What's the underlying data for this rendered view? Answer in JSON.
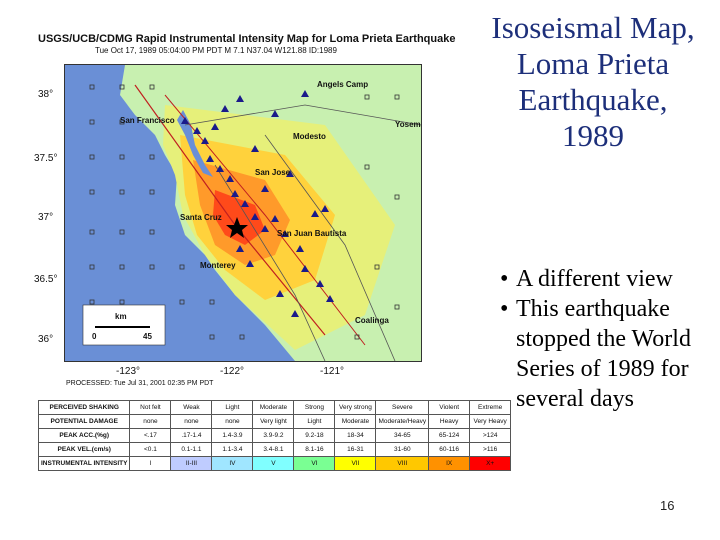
{
  "slide": {
    "title_lines": [
      "Isoseismal Map,",
      "Loma Prieta",
      "Earthquake,",
      "1989"
    ],
    "bullets": [
      "A different view",
      "This earthquake stopped the World Series of 1989 for several days"
    ],
    "page_number": "16"
  },
  "map": {
    "title": "USGS/UCB/CDMG Rapid Instrumental Intensity Map for Loma Prieta Earthquake",
    "subtitle": "Tue Oct 17, 1989 05:04:00 PM PDT  M 7.1  N37.04 W121.88  ID:1989",
    "lat_labels": [
      "38°",
      "37.5°",
      "37°",
      "36.5°",
      "36°"
    ],
    "lon_labels": [
      "-123°",
      "-122°",
      "-121°"
    ],
    "cities": [
      "Angels Camp",
      "San Francisco",
      "Yosemite",
      "Modesto",
      "San Jose",
      "Santa Cruz",
      "San Juan Bautista",
      "Monterey",
      "Coalinga"
    ],
    "scale_label": "km",
    "scale_ticks": [
      "0",
      "45"
    ],
    "processed": "PROCESSED: Tue Jul 31, 2001 02:35 PM PDT",
    "legend": {
      "rows": [
        {
          "header": "PERCEIVED SHAKING",
          "cells": [
            "Not felt",
            "Weak",
            "Light",
            "Moderate",
            "Strong",
            "Very strong",
            "Severe",
            "Violent",
            "Extreme"
          ]
        },
        {
          "header": "POTENTIAL DAMAGE",
          "cells": [
            "none",
            "none",
            "none",
            "Very light",
            "Light",
            "Moderate",
            "Moderate/Heavy",
            "Heavy",
            "Very Heavy"
          ]
        },
        {
          "header": "PEAK ACC.(%g)",
          "cells": [
            "<.17",
            ".17-1.4",
            "1.4-3.9",
            "3.9-9.2",
            "9.2-18",
            "18-34",
            "34-65",
            "65-124",
            ">124"
          ]
        },
        {
          "header": "PEAK VEL.(cm/s)",
          "cells": [
            "<0.1",
            "0.1-1.1",
            "1.1-3.4",
            "3.4-8.1",
            "8.1-16",
            "16-31",
            "31-60",
            "60-116",
            ">116"
          ]
        },
        {
          "header": "INSTRUMENTAL INTENSITY",
          "cells": [
            "I",
            "II-III",
            "IV",
            "V",
            "VI",
            "VII",
            "VIII",
            "IX",
            "X+"
          ]
        }
      ],
      "colors": [
        "#ffffff",
        "#bfccff",
        "#a0e6ff",
        "#80ffff",
        "#7aff93",
        "#ffff00",
        "#ffc800",
        "#ff9100",
        "#ff0000"
      ]
    }
  }
}
